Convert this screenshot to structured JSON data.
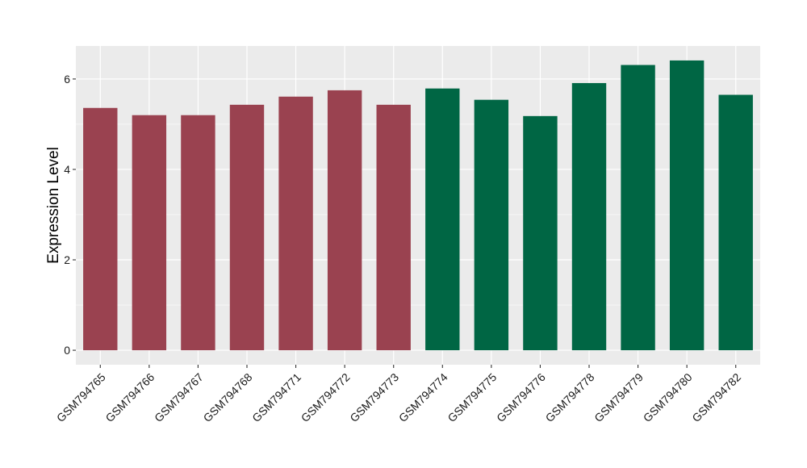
{
  "chart_data": {
    "type": "bar",
    "title": "",
    "xlabel": "",
    "ylabel": "Expression Level",
    "categories": [
      "GSM794765",
      "GSM794766",
      "GSM794767",
      "GSM794768",
      "GSM794771",
      "GSM794772",
      "GSM794773",
      "GSM794774",
      "GSM794775",
      "GSM794776",
      "GSM794778",
      "GSM794779",
      "GSM794780",
      "GSM794782"
    ],
    "values": [
      5.36,
      5.2,
      5.2,
      5.43,
      5.61,
      5.75,
      5.43,
      5.79,
      5.54,
      5.18,
      5.91,
      6.31,
      6.41,
      5.65
    ],
    "groups": [
      0,
      0,
      0,
      0,
      0,
      0,
      0,
      1,
      1,
      1,
      1,
      1,
      1,
      1
    ],
    "group_colors": [
      "#9a4250",
      "#006644"
    ],
    "yticks": [
      0,
      2,
      4,
      6
    ],
    "ylim": [
      -0.32,
      6.73
    ],
    "panel_background": "#ebebeb",
    "grid": true,
    "legend": "none"
  }
}
